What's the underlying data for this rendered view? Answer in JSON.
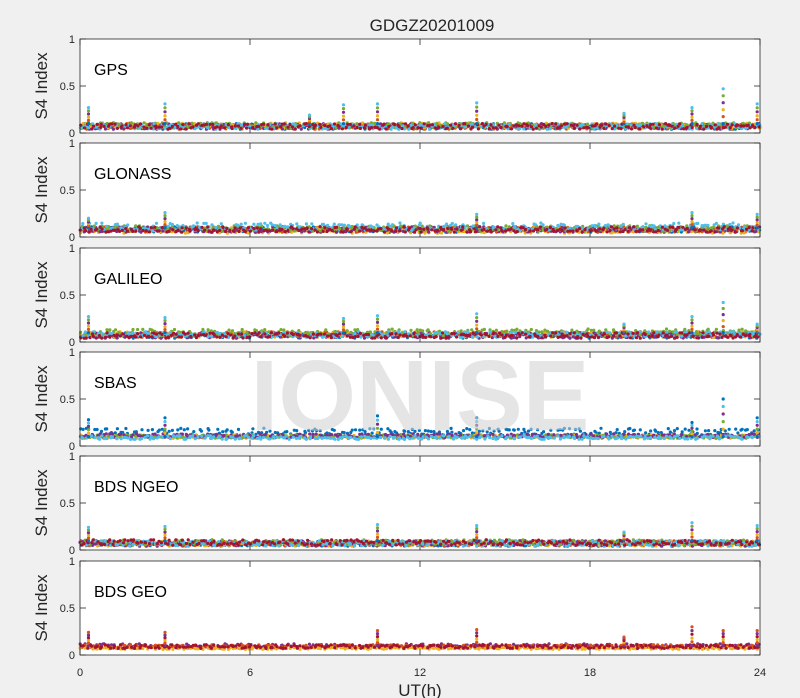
{
  "chart_data": {
    "type": "scatter",
    "title": "GDGZ20201009",
    "xlabel": "UT(h)",
    "ylabel": "S4 Index",
    "xlim": [
      0,
      24
    ],
    "ylim": [
      0,
      1
    ],
    "xticks": [
      0,
      6,
      12,
      18,
      24
    ],
    "yticks": [
      0,
      0.5,
      1
    ],
    "ytick_labels": [
      "0",
      "0.5",
      "1"
    ],
    "watermark": "IONISE",
    "grid": false,
    "panels": [
      {
        "name": "GPS",
        "series": [
          {
            "color": "#0072bd",
            "level": 0.07,
            "spread": 0.03
          },
          {
            "color": "#d95319",
            "level": 0.07,
            "spread": 0.03
          },
          {
            "color": "#edb120",
            "level": 0.08,
            "spread": 0.03
          },
          {
            "color": "#7e2f8e",
            "level": 0.07,
            "spread": 0.03
          },
          {
            "color": "#77ac30",
            "level": 0.08,
            "spread": 0.03
          },
          {
            "color": "#4dbeee",
            "level": 0.07,
            "spread": 0.03
          },
          {
            "color": "#a2142f",
            "level": 0.07,
            "spread": 0.03
          }
        ],
        "spikes": [
          {
            "x": 0.3,
            "y": 0.27
          },
          {
            "x": 3.0,
            "y": 0.31
          },
          {
            "x": 8.1,
            "y": 0.19
          },
          {
            "x": 9.3,
            "y": 0.3
          },
          {
            "x": 10.5,
            "y": 0.31
          },
          {
            "x": 14.0,
            "y": 0.32
          },
          {
            "x": 19.2,
            "y": 0.21
          },
          {
            "x": 21.6,
            "y": 0.27
          },
          {
            "x": 22.7,
            "y": 0.47
          },
          {
            "x": 23.9,
            "y": 0.31
          }
        ]
      },
      {
        "name": "GLONASS",
        "series": [
          {
            "color": "#0072bd",
            "level": 0.08,
            "spread": 0.03
          },
          {
            "color": "#d95319",
            "level": 0.08,
            "spread": 0.03
          },
          {
            "color": "#edb120",
            "level": 0.07,
            "spread": 0.03
          },
          {
            "color": "#7e2f8e",
            "level": 0.08,
            "spread": 0.03
          },
          {
            "color": "#77ac30",
            "level": 0.09,
            "spread": 0.03
          },
          {
            "color": "#4dbeee",
            "level": 0.11,
            "spread": 0.04
          },
          {
            "color": "#a2142f",
            "level": 0.08,
            "spread": 0.03
          }
        ],
        "spikes": [
          {
            "x": 0.3,
            "y": 0.2
          },
          {
            "x": 3.0,
            "y": 0.26
          },
          {
            "x": 14.0,
            "y": 0.24
          },
          {
            "x": 21.6,
            "y": 0.26
          },
          {
            "x": 23.9,
            "y": 0.24
          }
        ]
      },
      {
        "name": "GALILEO",
        "series": [
          {
            "color": "#0072bd",
            "level": 0.07,
            "spread": 0.03
          },
          {
            "color": "#d95319",
            "level": 0.08,
            "spread": 0.03
          },
          {
            "color": "#edb120",
            "level": 0.08,
            "spread": 0.03
          },
          {
            "color": "#7e2f8e",
            "level": 0.07,
            "spread": 0.03
          },
          {
            "color": "#77ac30",
            "level": 0.1,
            "spread": 0.04
          },
          {
            "color": "#4dbeee",
            "level": 0.08,
            "spread": 0.03
          },
          {
            "color": "#a2142f",
            "level": 0.07,
            "spread": 0.03
          }
        ],
        "spikes": [
          {
            "x": 0.3,
            "y": 0.27
          },
          {
            "x": 3.0,
            "y": 0.26
          },
          {
            "x": 9.3,
            "y": 0.25
          },
          {
            "x": 10.5,
            "y": 0.28
          },
          {
            "x": 14.0,
            "y": 0.3
          },
          {
            "x": 19.2,
            "y": 0.19
          },
          {
            "x": 21.6,
            "y": 0.27
          },
          {
            "x": 22.7,
            "y": 0.42
          },
          {
            "x": 23.9,
            "y": 0.19
          }
        ]
      },
      {
        "name": "SBAS",
        "series": [
          {
            "color": "#0072bd",
            "level": 0.15,
            "spread": 0.04
          },
          {
            "color": "#edb120",
            "level": 0.1,
            "spread": 0.02
          },
          {
            "color": "#77ac30",
            "level": 0.1,
            "spread": 0.02
          },
          {
            "color": "#7e2f8e",
            "level": 0.11,
            "spread": 0.02
          },
          {
            "color": "#4dbeee",
            "level": 0.09,
            "spread": 0.02
          }
        ],
        "spikes": [
          {
            "x": 0.3,
            "y": 0.28
          },
          {
            "x": 3.0,
            "y": 0.3
          },
          {
            "x": 10.5,
            "y": 0.32
          },
          {
            "x": 14.0,
            "y": 0.3
          },
          {
            "x": 21.6,
            "y": 0.25
          },
          {
            "x": 22.7,
            "y": 0.5
          },
          {
            "x": 23.9,
            "y": 0.3
          }
        ]
      },
      {
        "name": "BDS NGEO",
        "series": [
          {
            "color": "#0072bd",
            "level": 0.07,
            "spread": 0.03
          },
          {
            "color": "#d95319",
            "level": 0.07,
            "spread": 0.03
          },
          {
            "color": "#edb120",
            "level": 0.07,
            "spread": 0.03
          },
          {
            "color": "#7e2f8e",
            "level": 0.07,
            "spread": 0.03
          },
          {
            "color": "#77ac30",
            "level": 0.08,
            "spread": 0.03
          },
          {
            "color": "#4dbeee",
            "level": 0.07,
            "spread": 0.03
          },
          {
            "color": "#a2142f",
            "level": 0.08,
            "spread": 0.03
          }
        ],
        "spikes": [
          {
            "x": 0.3,
            "y": 0.24
          },
          {
            "x": 3.0,
            "y": 0.25
          },
          {
            "x": 10.5,
            "y": 0.27
          },
          {
            "x": 14.0,
            "y": 0.26
          },
          {
            "x": 19.2,
            "y": 0.19
          },
          {
            "x": 21.6,
            "y": 0.29
          },
          {
            "x": 23.9,
            "y": 0.26
          }
        ]
      },
      {
        "name": "BDS GEO",
        "series": [
          {
            "color": "#7e2f8e",
            "level": 0.1,
            "spread": 0.02
          },
          {
            "color": "#d95319",
            "level": 0.09,
            "spread": 0.02
          },
          {
            "color": "#edb120",
            "level": 0.07,
            "spread": 0.01
          },
          {
            "color": "#a2142f",
            "level": 0.09,
            "spread": 0.02
          }
        ],
        "spikes": [
          {
            "x": 0.3,
            "y": 0.24
          },
          {
            "x": 3.0,
            "y": 0.24
          },
          {
            "x": 10.5,
            "y": 0.26
          },
          {
            "x": 14.0,
            "y": 0.27
          },
          {
            "x": 19.2,
            "y": 0.19
          },
          {
            "x": 21.6,
            "y": 0.3
          },
          {
            "x": 22.7,
            "y": 0.26
          },
          {
            "x": 23.9,
            "y": 0.26
          }
        ]
      }
    ]
  }
}
